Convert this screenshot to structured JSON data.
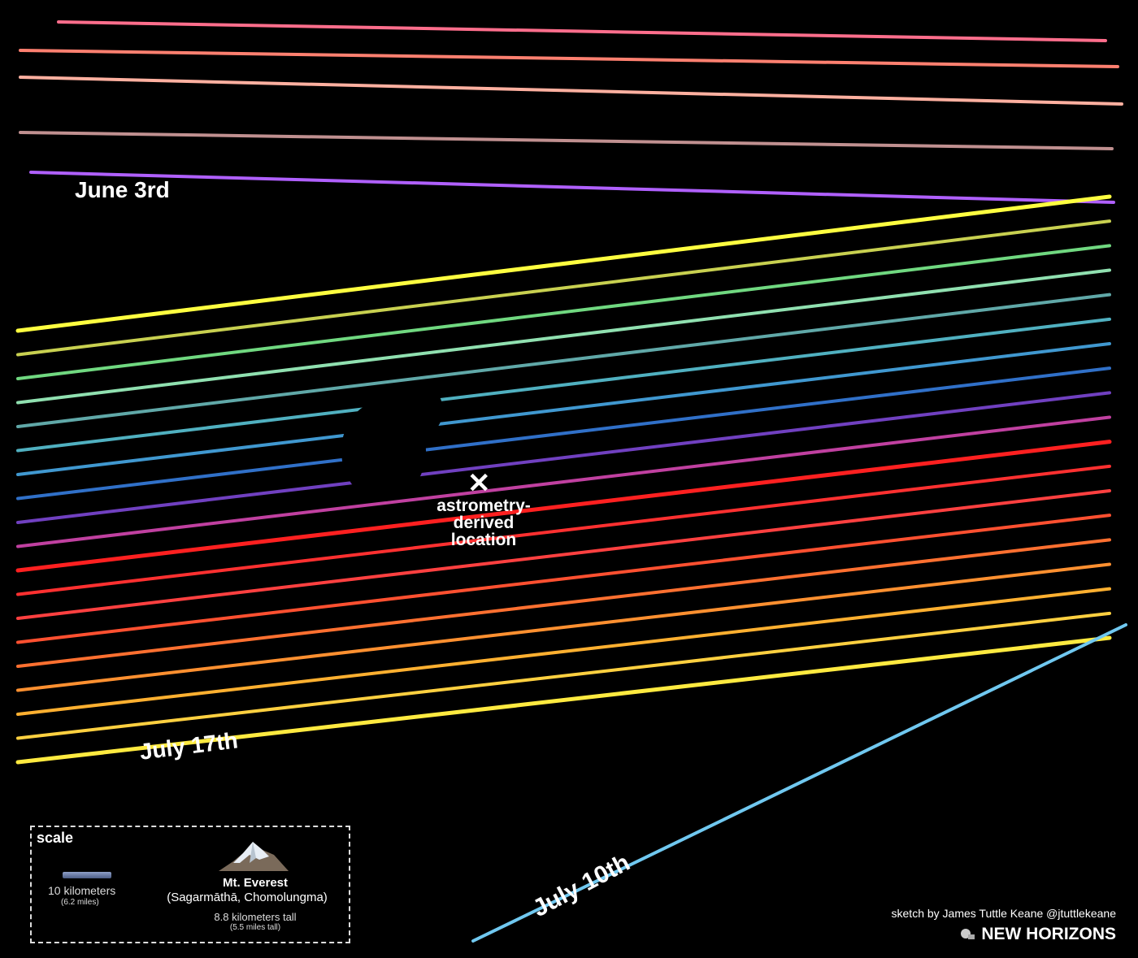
{
  "labels": {
    "june": "June 3rd",
    "july17": "July 17th",
    "july10": "July 10th",
    "x_mark": "✕",
    "astrometry": "astrometry-\nderived\nlocation"
  },
  "scale": {
    "title": "scale",
    "bar_km": "10 kilometers",
    "bar_mi": "(6.2 miles)",
    "everest_name": "Mt. Everest",
    "everest_alt": "(Sagarmāthā, Chomolungma)",
    "everest_km": "8.8 kilometers tall",
    "everest_mi": "(5.5 miles tall)"
  },
  "credit": "sketch by James Tuttle Keane @jtuttlekeane",
  "mission": "NEW HORIZONS",
  "chords": {
    "june_group": [
      "#ff6e8c",
      "#ff8070",
      "#ffb0a0",
      "#c09090",
      "#b060ff"
    ],
    "july17_group": [
      "#ffff40",
      "#c8d050",
      "#70d880",
      "#90e0b0",
      "#60a8a8",
      "#50b0c0",
      "#4098d0",
      "#3070c8",
      "#7040c0",
      "#c040a0",
      "#ff2020",
      "#ff3030",
      "#ff4040",
      "#ff5030",
      "#ff7030",
      "#ff9030",
      "#ffb030",
      "#ffd040",
      "#ffea40"
    ],
    "july10_color": "#70c8f0"
  }
}
